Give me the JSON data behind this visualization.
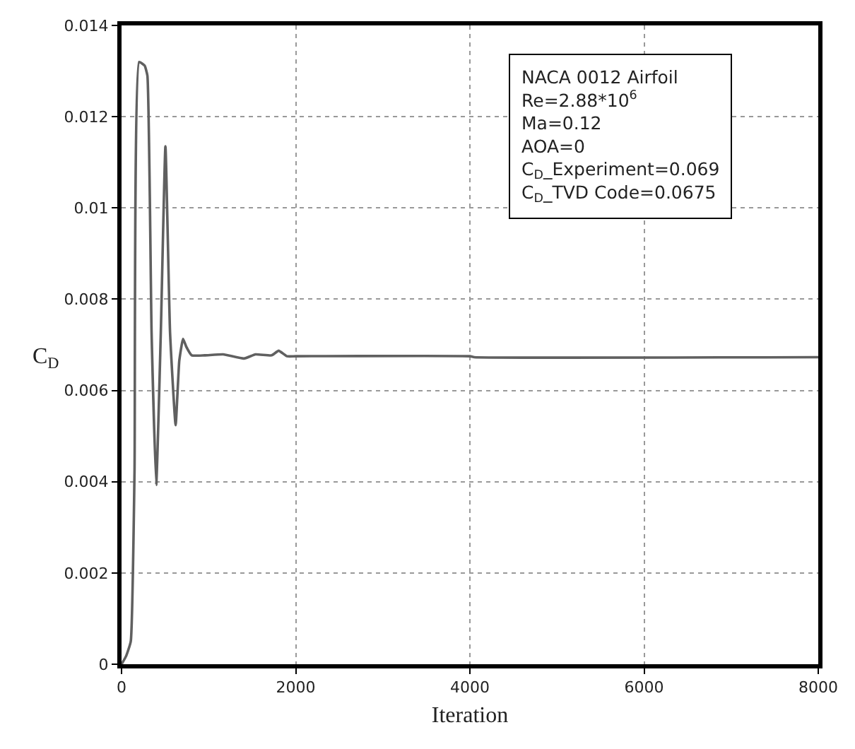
{
  "chart_data": {
    "type": "line",
    "xlabel": "Iteration",
    "ylabel": "C$_{D}$",
    "annotations": [
      "NACA 0012 Airfoil",
      "Re=2.88*10$^{6}$",
      "Ma=0.12",
      "AOA=0",
      "C$_{D}$_Experiment=0.069",
      "C$_{D}$_TVD Code=0.0675"
    ],
    "x": [
      0,
      53,
      106,
      149,
      202,
      265,
      297,
      345,
      398,
      451,
      504,
      557,
      621,
      663,
      706,
      743,
      806,
      955,
      1167,
      1406,
      1538,
      1724,
      1804,
      1899,
      2000,
      4000,
      4050,
      8000
    ],
    "series": [
      {
        "color": "#606060",
        "values": [
          0,
          0.00018,
          0.0005,
          0.0042,
          0.0132,
          0.01312,
          0.0129,
          0.00727,
          0.00393,
          0.00727,
          0.01135,
          0.00727,
          0.00524,
          0.00665,
          0.00713,
          0.00696,
          0.00677,
          0.00677,
          0.00679,
          0.0067,
          0.00679,
          0.00677,
          0.00687,
          0.00675,
          0.00675,
          0.00675,
          0.00673,
          0.00673
        ]
      }
    ],
    "xlim": [
      0,
      8000
    ],
    "xticks": [
      0,
      2000,
      4000,
      6000,
      8000
    ],
    "ylim": [
      0,
      0.014
    ],
    "yticks": [
      0,
      0.002,
      0.004,
      0.006,
      0.008,
      0.01,
      0.012,
      0.014
    ],
    "grid": true,
    "legend": false,
    "marker": "none",
    "line_style": "solid"
  }
}
